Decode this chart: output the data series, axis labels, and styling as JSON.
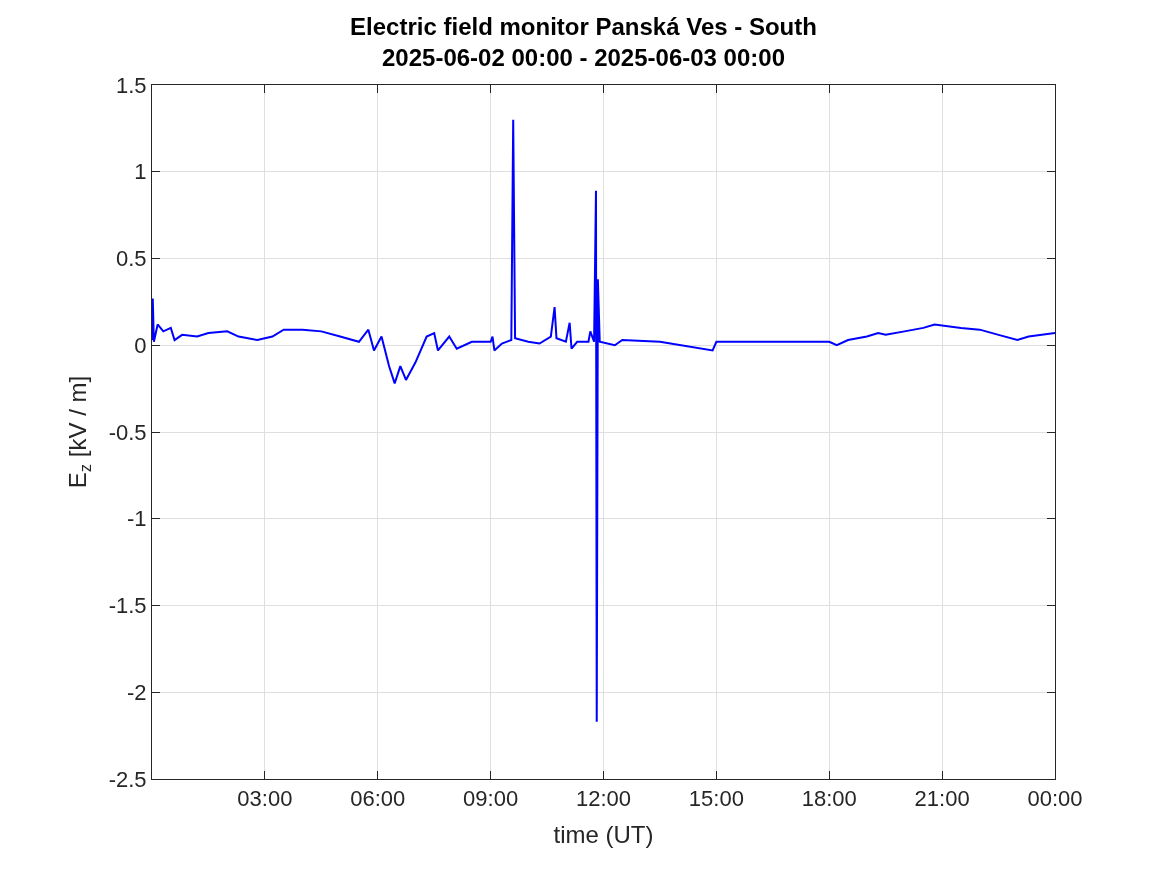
{
  "chart_data": {
    "type": "line",
    "title": "Electric field monitor Panská Ves - South\n2025-06-02 00:00 - 2025-06-03 00:00",
    "xlabel": "time (UT)",
    "ylabel": "E$_{z}$ [kV / m]",
    "series": [
      {
        "color": "#0000ff",
        "x": [
          0.0,
          0.02,
          0.05,
          0.15,
          0.3,
          0.5,
          0.6,
          0.8,
          1.2,
          1.5,
          2.0,
          2.3,
          2.8,
          3.2,
          3.5,
          4.0,
          4.5,
          5.0,
          5.5,
          5.75,
          5.9,
          6.1,
          6.3,
          6.45,
          6.6,
          6.75,
          7.0,
          7.3,
          7.5,
          7.6,
          7.9,
          8.1,
          8.5,
          9.0,
          9.05,
          9.1,
          9.3,
          9.55,
          9.6,
          9.65,
          10.0,
          10.3,
          10.6,
          10.7,
          10.75,
          11.0,
          11.1,
          11.15,
          11.3,
          11.6,
          11.65,
          11.75,
          11.8,
          11.82,
          11.85,
          11.9,
          12.3,
          12.5,
          13.5,
          14.9,
          15.0,
          16.5,
          18.0,
          18.2,
          18.5,
          19.0,
          19.3,
          19.5,
          20.0,
          20.5,
          20.8,
          21.5,
          22.0,
          22.5,
          23.0,
          23.3,
          24.0
        ],
        "values": [
          0.03,
          0.27,
          0.02,
          0.12,
          0.08,
          0.1,
          0.03,
          0.06,
          0.05,
          0.07,
          0.08,
          0.05,
          0.03,
          0.05,
          0.09,
          0.09,
          0.08,
          0.05,
          0.02,
          0.09,
          -0.03,
          0.05,
          -0.12,
          -0.22,
          -0.12,
          -0.2,
          -0.1,
          0.05,
          0.07,
          -0.03,
          0.05,
          -0.02,
          0.02,
          0.02,
          0.05,
          -0.03,
          0.01,
          0.03,
          1.3,
          0.04,
          0.02,
          0.01,
          0.05,
          0.22,
          0.04,
          0.02,
          0.13,
          -0.02,
          0.02,
          0.02,
          0.08,
          0.02,
          0.89,
          -2.17,
          0.38,
          0.02,
          0.0,
          0.03,
          0.02,
          -0.03,
          0.02,
          0.02,
          0.02,
          0.0,
          0.03,
          0.05,
          0.07,
          0.06,
          0.08,
          0.1,
          0.12,
          0.1,
          0.09,
          0.06,
          0.03,
          0.05,
          0.07
        ]
      }
    ],
    "xlim": [
      0,
      24
    ],
    "xticks": [
      {
        "value": 3,
        "label": "03:00"
      },
      {
        "value": 6,
        "label": "06:00"
      },
      {
        "value": 9,
        "label": "09:00"
      },
      {
        "value": 12,
        "label": "12:00"
      },
      {
        "value": 15,
        "label": "15:00"
      },
      {
        "value": 18,
        "label": "18:00"
      },
      {
        "value": 21,
        "label": "21:00"
      },
      {
        "value": 24,
        "label": "00:00"
      }
    ],
    "ylim": [
      -2.5,
      1.5
    ],
    "yticks": [
      -2.5,
      -2,
      -1.5,
      -1,
      -0.5,
      0,
      0.5,
      1,
      1.5
    ],
    "grid": true,
    "marker": "none",
    "line_style": "solid"
  }
}
